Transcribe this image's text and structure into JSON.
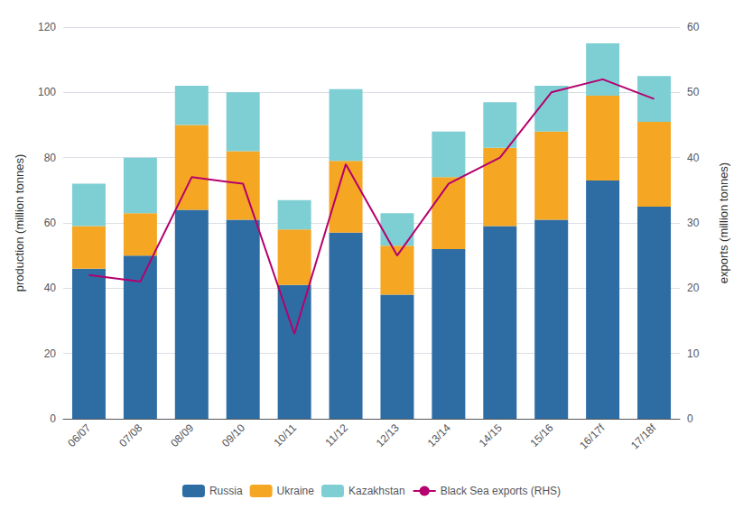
{
  "chart_data": {
    "type": "bar",
    "stacked": true,
    "categories": [
      "06/07",
      "07/08",
      "08/09",
      "09/10",
      "10/11",
      "11/12",
      "12/13",
      "13/14",
      "14/15",
      "15/16",
      "16/17f",
      "17/18f"
    ],
    "series": [
      {
        "name": "Russia",
        "color": "#2e6da4",
        "values": [
          46,
          50,
          64,
          61,
          41,
          57,
          38,
          52,
          59,
          61,
          73,
          65
        ]
      },
      {
        "name": "Ukraine",
        "color": "#f5a623",
        "values": [
          13,
          13,
          26,
          21,
          17,
          22,
          15,
          22,
          24,
          27,
          26,
          26
        ]
      },
      {
        "name": "Kazakhstan",
        "color": "#7ecfd4",
        "values": [
          13,
          17,
          12,
          18,
          9,
          22,
          10,
          14,
          14,
          14,
          16,
          14
        ]
      },
      {
        "name": "Black Sea exports (RHS)",
        "type": "line",
        "axis": "y2",
        "color": "#b5006e",
        "values": [
          22,
          21,
          37,
          36,
          13,
          39,
          25,
          36,
          40,
          50,
          52,
          49
        ]
      }
    ],
    "ylabel": "production (million tonnes)",
    "y2label": "exports (million tonnes)",
    "ylim": [
      0,
      120
    ],
    "yticks": [
      0,
      20,
      40,
      60,
      80,
      100,
      120
    ],
    "y2lim": [
      0,
      60
    ],
    "y2ticks": [
      0,
      10,
      20,
      30,
      40,
      50,
      60
    ],
    "grid": true,
    "legend": "bottom"
  }
}
